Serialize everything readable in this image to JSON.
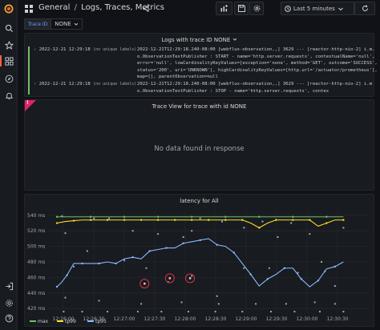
{
  "header": {
    "breadcrumb_root": "General",
    "breadcrumb_page": "Logs, Traces, Metrics",
    "time_range": "Last 5 minutes"
  },
  "variables": {
    "trace_id_label": "Trace ID",
    "trace_id_value": "NONE"
  },
  "logs_panel": {
    "title": "Logs with trace ID NONE",
    "rows": [
      {
        "time": "2022-12-21 12:29:18",
        "label": "(no unique labels)",
        "message": "2022-12-21T12:29:18.240-08:00 [webflux-observation,,] 3629 --- [reactor-http-nio-2] i.m.o.ObservationTextPublisher : START - name='http.server.requests', contextualName='null', error='null', lowCardinalityKeyValues=[exception='none', method='GET', outcome='SUCCESS', status='200', uri='UNKNOWN'], highCardinalityKeyValues=[http.url='/actuator/prometheus'], map=[], parentObservation=null"
      },
      {
        "time": "2022-12-21 12:29:18",
        "label": "(no unique labels)",
        "message": "2022-12-21T12:29:18.240-08:00 [webflux-observation,,] 3629 --- [reactor-http-nio-2] i.m.o.ObservationTextPublisher : STOP - name='http.server.requests', contex"
      }
    ]
  },
  "trace_panel": {
    "title": "Trace View for trace with id NONE",
    "empty_text": "No data found in response",
    "corner_mark": "!"
  },
  "chart_data": {
    "type": "line",
    "title": "latency for All",
    "y_ticks": [
      "540 ms",
      "520 ms",
      "500 ms",
      "480 ms",
      "460 ms",
      "440 ms",
      "420 ms"
    ],
    "x_ticks": [
      "12:26:00",
      "12:26:30",
      "12:27:00",
      "12:27:30",
      "12:28:00",
      "12:28:30",
      "12:29:00",
      "12:29:30",
      "12:30:00",
      "12:30:30"
    ],
    "ylim": [
      414,
      546
    ],
    "xlim": [
      0,
      352
    ],
    "series": [
      {
        "name": "max",
        "color": "#73bf69",
        "x": [
          0,
          20,
          40,
          60,
          80,
          100,
          120,
          140,
          160,
          180,
          200,
          220,
          240,
          260,
          280,
          300,
          320,
          340
        ],
        "values": [
          538,
          538,
          538,
          538,
          538,
          538,
          538,
          538,
          538,
          538,
          538,
          538,
          538,
          538,
          538,
          538,
          538,
          538
        ]
      },
      {
        "name": "tp99",
        "color": "#fade2a",
        "x": [
          0,
          10,
          20,
          30,
          40,
          50,
          60,
          70,
          80,
          90,
          100,
          110,
          120,
          130,
          140,
          150,
          160,
          170,
          180,
          190,
          200,
          210,
          220,
          230,
          240,
          250,
          260,
          270,
          280,
          290,
          300,
          310,
          320,
          330,
          340
        ],
        "values": [
          530,
          532,
          533,
          534,
          534,
          534,
          534,
          534,
          534,
          534,
          534,
          534,
          534,
          534,
          534,
          534,
          534,
          534,
          534,
          534,
          534,
          534,
          534,
          530,
          524,
          530,
          534,
          534,
          534,
          534,
          534,
          526,
          530,
          534,
          534
        ]
      },
      {
        "name": "tp95",
        "color": "#8ab8ff",
        "x": [
          0,
          5,
          12,
          20,
          30,
          40,
          50,
          60,
          70,
          80,
          90,
          100,
          110,
          120,
          130,
          140,
          150,
          160,
          170,
          180,
          190,
          200,
          210,
          220,
          230,
          240,
          250,
          260,
          270,
          280,
          290,
          300,
          310,
          320,
          330,
          340
        ],
        "values": [
          448,
          453,
          463,
          478,
          478,
          478,
          478,
          480,
          478,
          484,
          486,
          484,
          494,
          496,
          498,
          498,
          504,
          506,
          508,
          510,
          502,
          500,
          492,
          478,
          464,
          449,
          458,
          464,
          472,
          472,
          458,
          448,
          456,
          471,
          474,
          480
        ]
      }
    ],
    "scatter": [
      {
        "x": 6,
        "y": 539
      },
      {
        "x": 10,
        "y": 517
      },
      {
        "x": 20,
        "y": 474
      },
      {
        "x": 44,
        "y": 536
      },
      {
        "x": 62,
        "y": 536
      },
      {
        "x": 90,
        "y": 520
      },
      {
        "x": 120,
        "y": 516
      },
      {
        "x": 150,
        "y": 512
      },
      {
        "x": 160,
        "y": 520
      },
      {
        "x": 170,
        "y": 536
      },
      {
        "x": 196,
        "y": 532
      },
      {
        "x": 222,
        "y": 524
      },
      {
        "x": 244,
        "y": 532
      },
      {
        "x": 262,
        "y": 512
      },
      {
        "x": 278,
        "y": 530
      },
      {
        "x": 300,
        "y": 516
      },
      {
        "x": 314,
        "y": 480
      },
      {
        "x": 340,
        "y": 524
      },
      {
        "x": 36,
        "y": 494
      },
      {
        "x": 80,
        "y": 482
      },
      {
        "x": 106,
        "y": 472
      },
      {
        "x": 132,
        "y": 454
      },
      {
        "x": 160,
        "y": 462
      },
      {
        "x": 190,
        "y": 436
      },
      {
        "x": 222,
        "y": 472
      },
      {
        "x": 252,
        "y": 472
      },
      {
        "x": 286,
        "y": 466
      },
      {
        "x": 318,
        "y": 468
      },
      {
        "x": 330,
        "y": 449
      },
      {
        "x": 10,
        "y": 434
      },
      {
        "x": 50,
        "y": 430
      },
      {
        "x": 100,
        "y": 426
      },
      {
        "x": 148,
        "y": 428
      },
      {
        "x": 192,
        "y": 426
      },
      {
        "x": 236,
        "y": 426
      },
      {
        "x": 272,
        "y": 426
      },
      {
        "x": 306,
        "y": 428
      },
      {
        "x": 330,
        "y": 426
      },
      {
        "x": 8,
        "y": 416
      },
      {
        "x": 30,
        "y": 416
      },
      {
        "x": 60,
        "y": 416
      },
      {
        "x": 96,
        "y": 416
      },
      {
        "x": 124,
        "y": 416
      },
      {
        "x": 156,
        "y": 416
      },
      {
        "x": 188,
        "y": 416
      },
      {
        "x": 220,
        "y": 416
      },
      {
        "x": 254,
        "y": 416
      },
      {
        "x": 282,
        "y": 416
      },
      {
        "x": 312,
        "y": 416
      },
      {
        "x": 340,
        "y": 416
      }
    ],
    "highlighted": [
      {
        "x": 104,
        "y": 452
      },
      {
        "x": 134,
        "y": 459
      },
      {
        "x": 158,
        "y": 459
      }
    ],
    "highlight_color": "#e02f44",
    "legend_placement": "bottom-left"
  }
}
